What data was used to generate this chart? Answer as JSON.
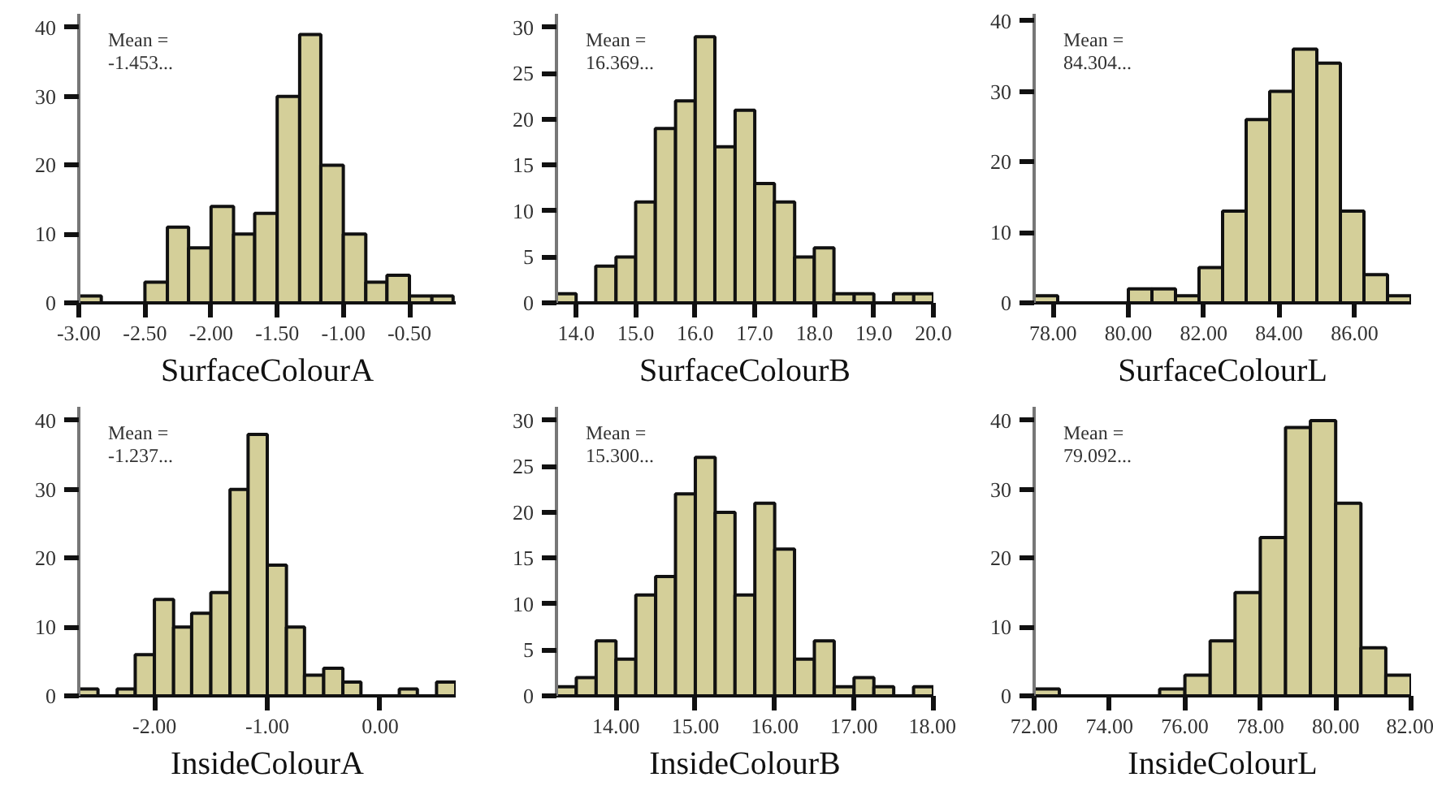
{
  "chart_data": [
    {
      "type": "histogram",
      "xlabel": "SurfaceColourA",
      "annotations": [
        "Mean =",
        "-1.453..."
      ],
      "color": "#d4cf99",
      "bins": [
        -3.0,
        -2.83,
        -2.67,
        -2.5,
        -2.33,
        -2.17,
        -2.0,
        -1.83,
        -1.67,
        -1.5,
        -1.33,
        -1.17,
        -1.0,
        -0.83,
        -0.67,
        -0.5,
        -0.33,
        -0.17
      ],
      "values": [
        1,
        0,
        0,
        3,
        11,
        8,
        14,
        10,
        13,
        30,
        39,
        20,
        10,
        3,
        4,
        1,
        1
      ],
      "xlim": [
        -3.0,
        -0.15
      ],
      "ylim": [
        0,
        42
      ],
      "xticks": [
        {
          "value": -3.0,
          "label": "-3.00"
        },
        {
          "value": -2.5,
          "label": "-2.50"
        },
        {
          "value": -2.0,
          "label": "-2.00"
        },
        {
          "value": -1.5,
          "label": "-1.50"
        },
        {
          "value": -1.0,
          "label": "-1.00"
        },
        {
          "value": -0.5,
          "label": "-0.50"
        }
      ],
      "yticks": [
        0,
        10,
        20,
        30,
        40
      ]
    },
    {
      "type": "histogram",
      "xlabel": "SurfaceColourB",
      "annotations": [
        "Mean =",
        "16.369..."
      ],
      "color": "#d4cf99",
      "bins": [
        13.67,
        14.0,
        14.33,
        14.67,
        15.0,
        15.33,
        15.67,
        16.0,
        16.33,
        16.67,
        17.0,
        17.33,
        17.67,
        18.0,
        18.33,
        18.67,
        19.0,
        19.33,
        19.67,
        20.0
      ],
      "values": [
        1,
        0,
        4,
        5,
        11,
        19,
        22,
        29,
        17,
        21,
        13,
        11,
        5,
        6,
        1,
        1,
        0,
        1,
        1
      ],
      "xlim": [
        13.67,
        20.0
      ],
      "ylim": [
        0,
        31.5
      ],
      "xticks": [
        {
          "value": 14,
          "label": "14.0"
        },
        {
          "value": 15,
          "label": "15.0"
        },
        {
          "value": 16,
          "label": "16.0"
        },
        {
          "value": 17,
          "label": "17.0"
        },
        {
          "value": 18,
          "label": "18.0"
        },
        {
          "value": 19,
          "label": "19.0"
        },
        {
          "value": 20,
          "label": "20.0"
        }
      ],
      "yticks": [
        0,
        5,
        10,
        15,
        20,
        25,
        30
      ]
    },
    {
      "type": "histogram",
      "xlabel": "SurfaceColourL",
      "annotations": [
        "Mean =",
        "84.304..."
      ],
      "color": "#d4cf99",
      "bins": [
        77.5,
        78.125,
        78.75,
        79.375,
        80.0,
        80.625,
        81.25,
        81.875,
        82.5,
        83.125,
        83.75,
        84.375,
        85.0,
        85.625,
        86.25,
        86.875,
        87.5
      ],
      "values": [
        1,
        0,
        0,
        0,
        2,
        2,
        1,
        5,
        13,
        26,
        30,
        36,
        34,
        13,
        4,
        1
      ],
      "xlim": [
        77.5,
        87.5
      ],
      "ylim": [
        0,
        41
      ],
      "xticks": [
        {
          "value": 78,
          "label": "78.00"
        },
        {
          "value": 80,
          "label": "80.00"
        },
        {
          "value": 82,
          "label": "82.00"
        },
        {
          "value": 84,
          "label": "84.00"
        },
        {
          "value": 86,
          "label": "86.00"
        }
      ],
      "yticks": [
        0,
        10,
        20,
        30,
        40
      ]
    },
    {
      "type": "histogram",
      "xlabel": "InsideColourA",
      "annotations": [
        "Mean =",
        "-1.237..."
      ],
      "color": "#d4cf99",
      "bins": [
        -2.67,
        -2.5,
        -2.33,
        -2.17,
        -2.0,
        -1.83,
        -1.67,
        -1.5,
        -1.33,
        -1.17,
        -1.0,
        -0.83,
        -0.67,
        -0.5,
        -0.33,
        -0.17,
        0.0,
        0.17,
        0.33,
        0.5,
        0.67
      ],
      "values": [
        1,
        0,
        1,
        6,
        14,
        10,
        12,
        15,
        30,
        38,
        19,
        10,
        3,
        4,
        2,
        0,
        0,
        1,
        0,
        2
      ],
      "xlim": [
        -2.67,
        0.67
      ],
      "ylim": [
        0,
        42
      ],
      "xticks": [
        {
          "value": -2.0,
          "label": "-2.00"
        },
        {
          "value": -1.0,
          "label": "-1.00"
        },
        {
          "value": 0.0,
          "label": "0.00"
        }
      ],
      "yticks": [
        0,
        10,
        20,
        30,
        40
      ]
    },
    {
      "type": "histogram",
      "xlabel": "InsideColourB",
      "annotations": [
        "Mean =",
        "15.300..."
      ],
      "color": "#d4cf99",
      "bins": [
        13.25,
        13.5,
        13.75,
        14.0,
        14.25,
        14.5,
        14.75,
        15.0,
        15.25,
        15.5,
        15.75,
        16.0,
        16.25,
        16.5,
        16.75,
        17.0,
        17.25,
        17.5,
        17.75,
        18.0
      ],
      "values": [
        1,
        2,
        6,
        4,
        11,
        13,
        22,
        26,
        20,
        11,
        21,
        16,
        4,
        6,
        1,
        2,
        1,
        0,
        1
      ],
      "xlim": [
        13.25,
        18.0
      ],
      "ylim": [
        0,
        31.5
      ],
      "xticks": [
        {
          "value": 14,
          "label": "14.00"
        },
        {
          "value": 15,
          "label": "15.00"
        },
        {
          "value": 16,
          "label": "16.00"
        },
        {
          "value": 17,
          "label": "17.00"
        },
        {
          "value": 18,
          "label": "18.00"
        }
      ],
      "yticks": [
        0,
        5,
        10,
        15,
        20,
        25,
        30
      ]
    },
    {
      "type": "histogram",
      "xlabel": "InsideColourL",
      "annotations": [
        "Mean =",
        "79.092..."
      ],
      "color": "#d4cf99",
      "bins": [
        72.0,
        72.67,
        73.33,
        74.0,
        74.67,
        75.33,
        76.0,
        76.67,
        77.33,
        78.0,
        78.67,
        79.33,
        80.0,
        80.67,
        81.33,
        82.0
      ],
      "values": [
        1,
        0,
        0,
        0,
        0,
        1,
        3,
        8,
        15,
        23,
        39,
        40,
        28,
        7,
        3
      ],
      "xlim": [
        72.0,
        82.0
      ],
      "ylim": [
        0,
        42
      ],
      "xticks": [
        {
          "value": 72,
          "label": "72.00"
        },
        {
          "value": 74,
          "label": "74.00"
        },
        {
          "value": 76,
          "label": "76.00"
        },
        {
          "value": 78,
          "label": "78.00"
        },
        {
          "value": 80,
          "label": "80.00"
        },
        {
          "value": 82,
          "label": "82.00"
        }
      ],
      "yticks": [
        0,
        10,
        20,
        30,
        40
      ]
    }
  ]
}
